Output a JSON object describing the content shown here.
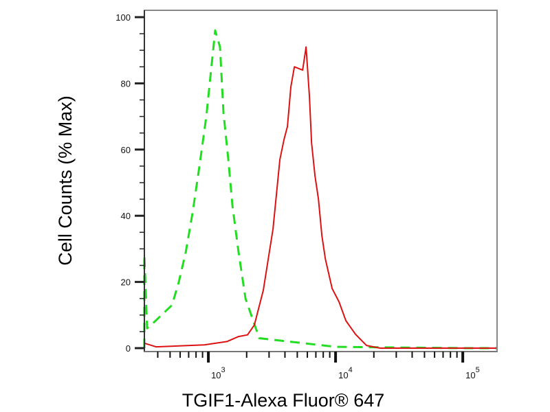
{
  "chart_data": {
    "type": "line",
    "title": "",
    "xlabel": "TGIF1-Alexa Fluor® 647",
    "ylabel": "Cell Counts (% Max)",
    "xscale": "log",
    "xlim": [
      314,
      186000
    ],
    "ylim": [
      0,
      102.5
    ],
    "x_ticks": [
      {
        "value": 1000,
        "base": "10",
        "exp": "3"
      },
      {
        "value": 10000,
        "base": "10",
        "exp": "4"
      },
      {
        "value": 100000,
        "base": "10",
        "exp": "5"
      }
    ],
    "y_ticks": [
      0,
      20,
      40,
      60,
      80,
      100
    ],
    "y_tick_labels": [
      "0",
      "20",
      "40",
      "60",
      "80",
      "100"
    ],
    "grid": false,
    "series": [
      {
        "style": "dashed",
        "color": "#22dd22",
        "x": [
          314,
          314,
          330,
          378,
          518,
          586,
          664,
          752,
          851,
          963,
          1132,
          1235,
          1315,
          1435,
          1546,
          1728,
          1958,
          2513,
          10000,
          100000,
          186000
        ],
        "y": [
          0,
          28,
          6,
          8,
          13,
          20,
          29,
          41,
          55,
          70,
          96,
          91,
          71,
          57,
          43,
          29,
          15,
          3,
          0.4,
          0,
          0
        ]
      },
      {
        "style": "solid",
        "color": "#dd1111",
        "x": [
          314,
          388,
          929,
          1399,
          1728,
          2031,
          2301,
          2704,
          3221,
          3648,
          3934,
          4186,
          4455,
          4742,
          5508,
          5861,
          6235,
          6475,
          6889,
          7331,
          7802,
          8303,
          9400,
          10642,
          12050,
          14350,
          17510,
          22430,
          186000
        ],
        "y": [
          1.5,
          0.4,
          1,
          2,
          3.5,
          4,
          7,
          17.5,
          36,
          57,
          63,
          67,
          79,
          85,
          84,
          91,
          76,
          62,
          52,
          45,
          34,
          27,
          18,
          14,
          8.3,
          4.2,
          0.8,
          0,
          0
        ]
      }
    ]
  }
}
